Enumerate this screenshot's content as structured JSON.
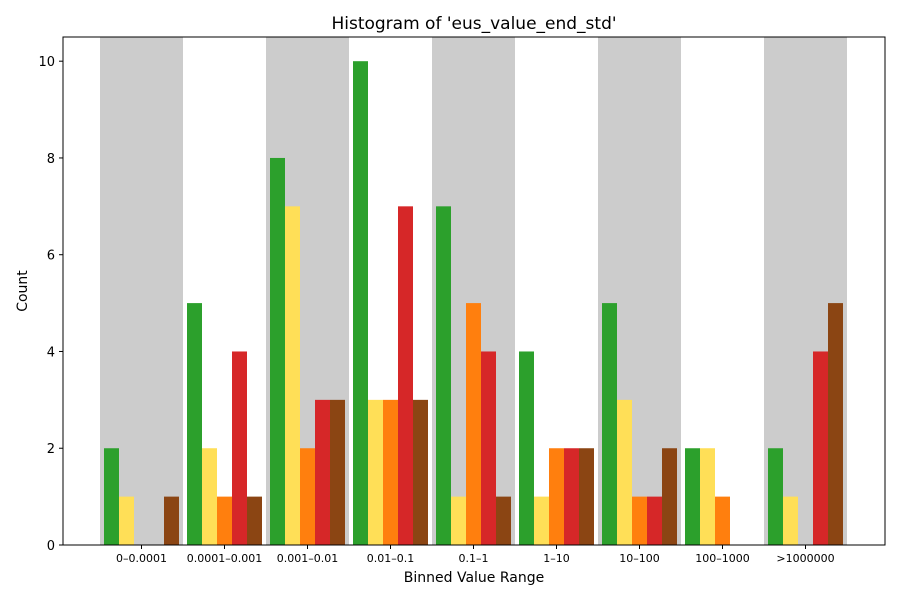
{
  "chart_data": {
    "type": "bar",
    "title": "Histogram of 'eus_value_end_std'",
    "xlabel": "Binned Value Range",
    "ylabel": "Count",
    "ylim": [
      0,
      10.5
    ],
    "yticks": [
      0,
      2,
      4,
      6,
      8,
      10
    ],
    "grid": false,
    "legend": "none",
    "categories": [
      "0–0.0001",
      "0.0001–0.001",
      "0.001–0.01",
      "0.01–0.1",
      "0.1–1",
      "1–10",
      "10–100",
      "100–1000",
      ">1000000"
    ],
    "band_shading": {
      "color": "#cccccc",
      "pattern": "alternating, starting with first category"
    },
    "series": [
      {
        "color": "#2ca02c",
        "values": [
          2,
          5,
          8,
          10,
          7,
          4,
          5,
          2,
          2
        ]
      },
      {
        "color": "#ffdf57",
        "values": [
          1,
          2,
          7,
          3,
          1,
          1,
          3,
          2,
          1
        ]
      },
      {
        "color": "#ff7f0e",
        "values": [
          0,
          1,
          2,
          3,
          5,
          2,
          1,
          1,
          0
        ]
      },
      {
        "color": "#d62728",
        "values": [
          0,
          4,
          3,
          7,
          4,
          2,
          1,
          0,
          4
        ]
      },
      {
        "color": "#8b4513",
        "values": [
          1,
          1,
          3,
          3,
          1,
          2,
          2,
          0,
          5
        ]
      }
    ]
  }
}
